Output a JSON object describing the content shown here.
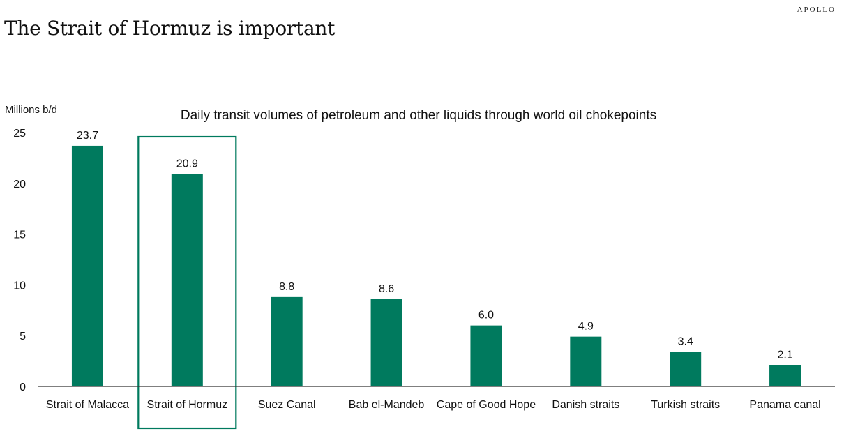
{
  "brand": "APOLLO",
  "page_title": "The Strait of Hormuz is important",
  "chart_data": {
    "type": "bar",
    "title": "Daily transit volumes of petroleum and other liquids through world oil chokepoints",
    "ylabel": "Millions b/d",
    "xlabel": "",
    "ylim": [
      0,
      25
    ],
    "yticks": [
      0,
      5,
      10,
      15,
      20,
      25
    ],
    "categories": [
      "Strait of Malacca",
      "Strait of Hormuz",
      "Suez Canal",
      "Bab el-Mandeb",
      "Cape of Good Hope",
      "Danish straits",
      "Turkish straits",
      "Panama canal"
    ],
    "values": [
      23.7,
      20.9,
      8.8,
      8.6,
      6.0,
      4.9,
      3.4,
      2.1
    ],
    "value_labels": [
      "23.7",
      "20.9",
      "8.8",
      "8.6",
      "6.0",
      "4.9",
      "3.4",
      "2.1"
    ],
    "bar_color": "#007a5e",
    "highlight_category": "Strait of Hormuz",
    "highlight_color": "#007a5e",
    "grid": false,
    "legend": "none"
  }
}
